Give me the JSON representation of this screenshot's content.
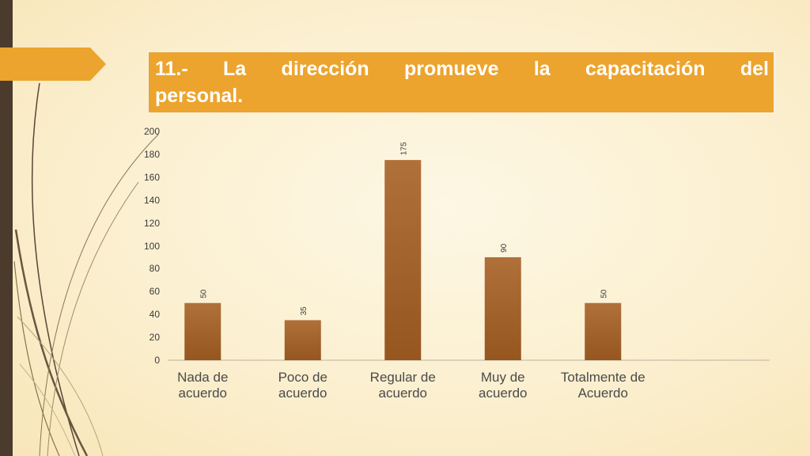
{
  "title": {
    "line1_words": [
      "11.-",
      "La",
      "dirección",
      "promueve",
      "la",
      "capacitación",
      "del"
    ],
    "line2": "personal."
  },
  "colors": {
    "title_bg": "#eca42e",
    "bar": "#b0703a",
    "bar_dark": "#96561f",
    "accent_arrow": "#eca42e",
    "left_strip": "#4a3b2c"
  },
  "chart_data": {
    "type": "bar",
    "categories": [
      "Nada de acuerdo",
      "Poco de acuerdo",
      "Regular de acuerdo",
      "Muy de acuerdo",
      "Totalmente de Acuerdo"
    ],
    "category_lines": [
      [
        "Nada de",
        "acuerdo"
      ],
      [
        "Poco de",
        "acuerdo"
      ],
      [
        "Regular de",
        "acuerdo"
      ],
      [
        "Muy de",
        "acuerdo"
      ],
      [
        "Totalmente de",
        "Acuerdo"
      ]
    ],
    "values": [
      50,
      35,
      175,
      90,
      50
    ],
    "data_labels": [
      "50",
      "35",
      "175",
      "90",
      "50"
    ],
    "ylim": [
      0,
      200
    ],
    "yticks": [
      "0",
      "20",
      "40",
      "60",
      "80",
      "100",
      "120",
      "140",
      "160",
      "180",
      "200"
    ],
    "grid": false,
    "legend": "none"
  }
}
